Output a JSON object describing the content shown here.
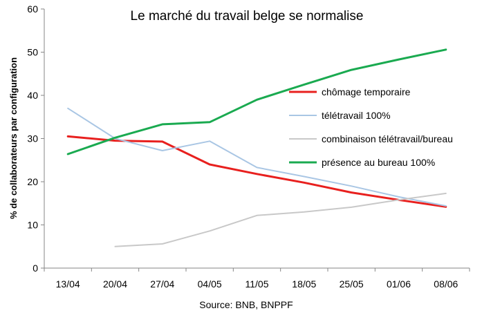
{
  "chart_data": {
    "type": "line",
    "title": "Le marché du travail belge se normalise",
    "ylabel": "% de collaborateurs par configuration",
    "source": "Source: BNB, BNPPF",
    "categories": [
      "13/04",
      "20/04",
      "27/04",
      "04/05",
      "11/05",
      "18/05",
      "25/05",
      "01/06",
      "08/06"
    ],
    "ylim": [
      0,
      60
    ],
    "yticks": [
      "0",
      "10",
      "20",
      "30",
      "40",
      "50",
      "60"
    ],
    "grid": false,
    "legend_position": "right",
    "series": [
      {
        "name": "chômage temporaire",
        "color": "#e8201e",
        "width": 3,
        "values": [
          30.5,
          29.5,
          29.3,
          24.0,
          21.8,
          19.8,
          17.5,
          15.8,
          14.2
        ]
      },
      {
        "name": "télétravail 100%",
        "color": "#a9c6e4",
        "width": 2,
        "values": [
          37.0,
          30.0,
          27.2,
          29.4,
          23.3,
          21.2,
          19.0,
          16.5,
          14.4
        ]
      },
      {
        "name": "combinaison télétravail/bureau",
        "color": "#c8c8c8",
        "width": 2,
        "values": [
          null,
          5.0,
          5.6,
          8.6,
          12.2,
          13.0,
          14.1,
          15.8,
          17.3
        ]
      },
      {
        "name": "présence au bureau 100%",
        "color": "#1aaa50",
        "width": 3,
        "values": [
          26.4,
          30.2,
          33.3,
          33.8,
          39.0,
          42.5,
          45.9,
          48.3,
          50.6
        ]
      }
    ]
  }
}
